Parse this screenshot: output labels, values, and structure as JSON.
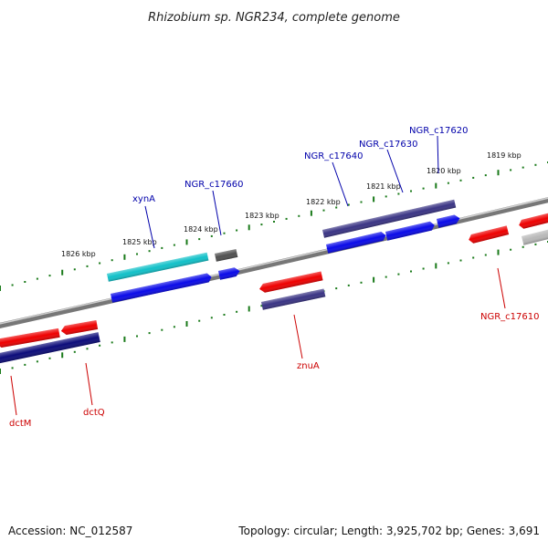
{
  "title": "Rhizobium sp. NGR234, complete genome",
  "accession": "Accession: NC_012587",
  "topology": "Topology: circular; Length: 3,925,702 bp; Genes: 3,691",
  "colors": {
    "blue_label": "#0000aa",
    "red_label": "#cc0000",
    "tick": "#1a7a1a",
    "backbone": "#8a8a8a"
  },
  "scale_labels": [
    "1826 kbp",
    "1825 kbp",
    "1824 kbp",
    "1823 kbp",
    "1822 kbp",
    "1821 kbp",
    "1820 kbp",
    "1819 kbp"
  ],
  "genes": {
    "xynA": "xynA",
    "NGR_c17660": "NGR_c17660",
    "NGR_c17640": "NGR_c17640",
    "NGR_c17630": "NGR_c17630",
    "NGR_c17620": "NGR_c17620",
    "znuA": "znuA",
    "NGR_c17610": "NGR_c17610",
    "dctM": "dctM",
    "dctQ": "dctQ"
  }
}
